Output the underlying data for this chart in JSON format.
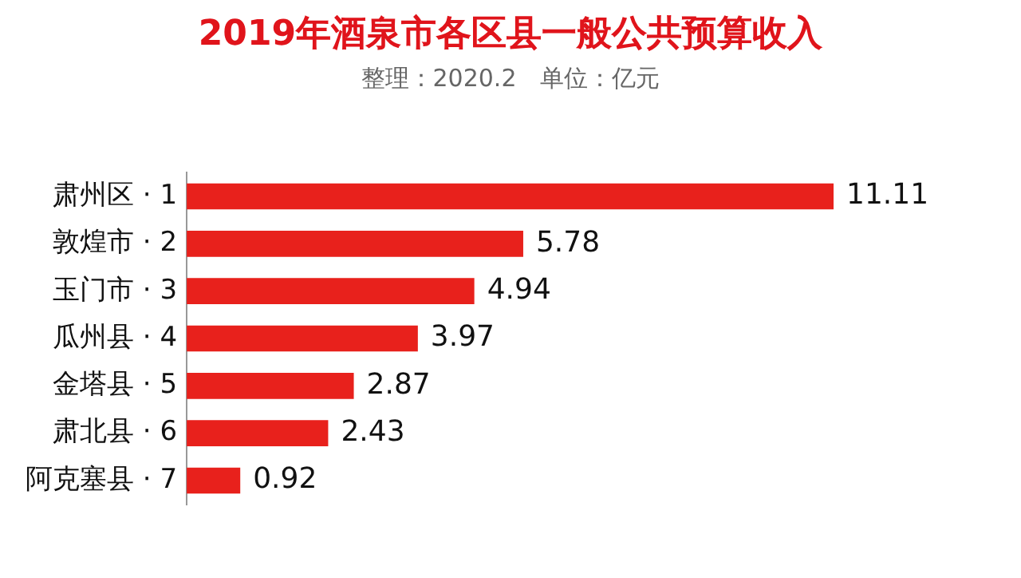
{
  "chart_data": {
    "type": "bar",
    "orientation": "horizontal",
    "title": "2019年酒泉市各区县一般公共预算收入",
    "subtitle": "整理：2020.2　单位：亿元",
    "categories": [
      "肃州区 · 1",
      "敦煌市 · 2",
      "玉门市 · 3",
      "瓜州县 · 4",
      "金塔县 · 5",
      "肃北县 · 6",
      "阿克塞县 · 7"
    ],
    "values": [
      11.11,
      5.78,
      4.94,
      3.97,
      2.87,
      2.43,
      0.92
    ],
    "color": "#e8211c",
    "data_labels": true,
    "tick_labels": "y"
  }
}
